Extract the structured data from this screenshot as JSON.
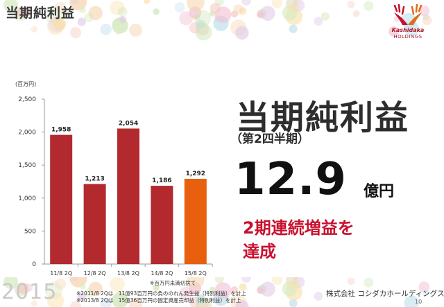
{
  "header": {
    "title": "当期純利益"
  },
  "logo": {
    "brand": "Kashidaka",
    "sub": "HOLDINGS"
  },
  "chart_data": {
    "type": "bar",
    "unit_label": "(百万円)",
    "categories": [
      "11/8 2Q",
      "12/8 2Q",
      "13/8 2Q",
      "14/8 2Q",
      "15/8 2Q"
    ],
    "values": [
      1958,
      1213,
      2054,
      1186,
      1292
    ],
    "value_labels": [
      "1,958",
      "1,213",
      "2,054",
      "1,186",
      "1,292"
    ],
    "ylim": [
      0,
      2500
    ],
    "yticks": [
      0,
      500,
      1000,
      1500,
      2000,
      2500
    ],
    "ytick_labels": [
      "0",
      "500",
      "1,000",
      "1,500",
      "2,000",
      "2,500"
    ],
    "colors": [
      "#b22a2e",
      "#b22a2e",
      "#b22a2e",
      "#b22a2e",
      "#e8600e"
    ],
    "grid": false,
    "legend": "none"
  },
  "main": {
    "title": "当期純利益",
    "subtitle": "（第2四半期）",
    "value": "12.9",
    "unit": "億円",
    "highlight_line1": "2期連続増益を",
    "highlight_line2": "達成"
  },
  "notes": {
    "rounding": "※百万円未満切捨て",
    "note1": "※2011/8 2Qは　11億93百万円の負ののれん発生益（特別利益）を計上",
    "note2": "※2013/8 2Qは　15億36百万円の固定資産売却益（特別利益）を計上"
  },
  "footer": {
    "year": "2015",
    "company": "株式会社 コシダカホールディングス",
    "page": "10"
  },
  "colors": {
    "bar": "#b22a2e",
    "bar_highlight": "#e8600e",
    "accent": "#c8102e"
  }
}
